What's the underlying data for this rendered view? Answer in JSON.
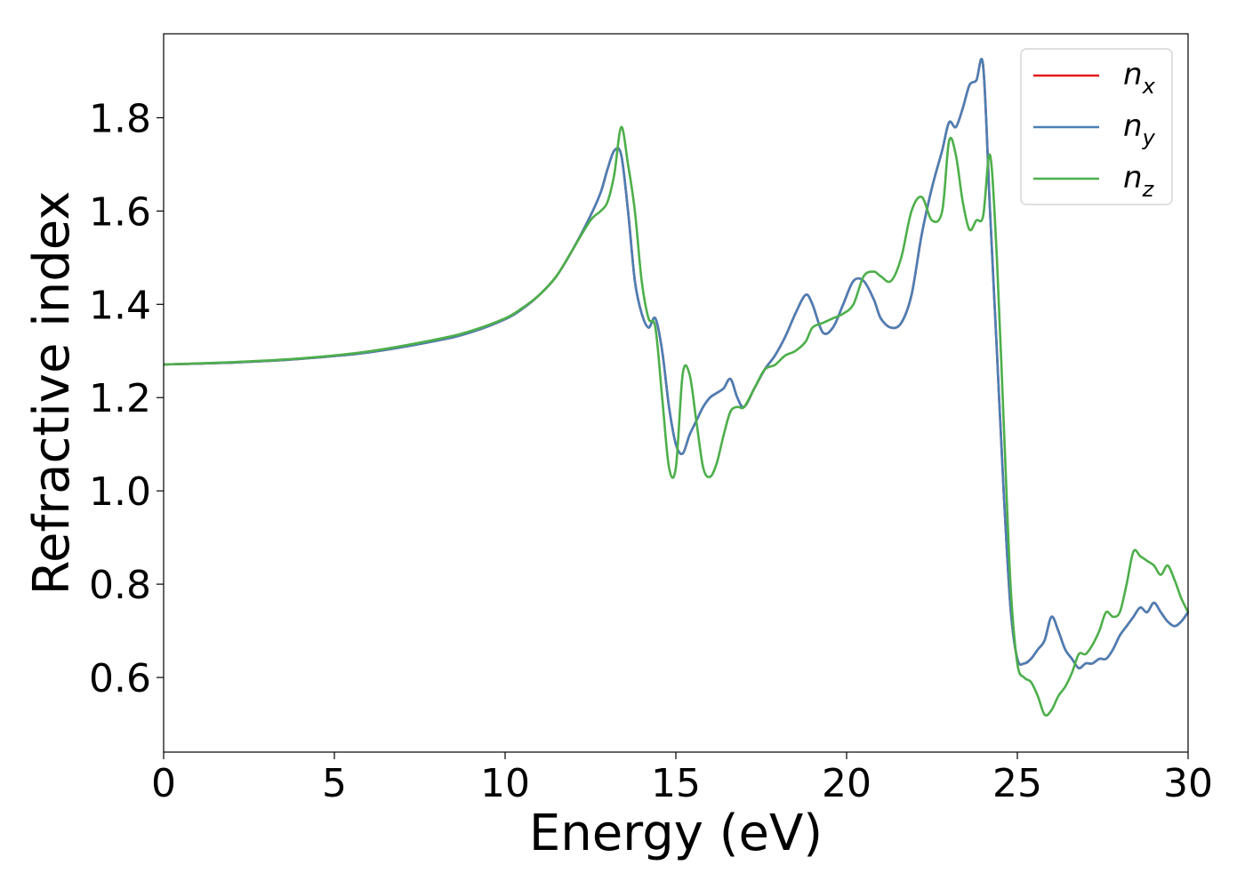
{
  "chart_data": {
    "type": "line",
    "xlabel": "Energy (eV)",
    "ylabel": "Refractive index",
    "xlim": [
      0,
      30
    ],
    "ylim": [
      0.44,
      1.98
    ],
    "xticks": [
      0,
      5,
      10,
      15,
      20,
      25,
      30
    ],
    "xtick_labels": [
      "0",
      "5",
      "10",
      "15",
      "20",
      "25",
      "30"
    ],
    "yticks": [
      0.6,
      0.8,
      1.0,
      1.2,
      1.4,
      1.6,
      1.8
    ],
    "ytick_labels": [
      "0.6",
      "0.8",
      "1.0",
      "1.2",
      "1.4",
      "1.6",
      "1.8"
    ],
    "grid": false,
    "legend_position": "top-right",
    "series": [
      {
        "name": "n_x",
        "legend_main": "n",
        "legend_sub": "x",
        "color": "#e41a1c",
        "x": [
          0,
          2,
          4,
          6,
          8,
          9,
          10,
          10.5,
          11,
          11.5,
          12,
          12.5,
          12.8,
          13.0,
          13.2,
          13.4,
          13.6,
          13.8,
          14.0,
          14.2,
          14.4,
          14.6,
          14.8,
          15.0,
          15.2,
          15.4,
          15.6,
          15.8,
          16.0,
          16.2,
          16.4,
          16.6,
          16.8,
          17.0,
          17.3,
          17.6,
          17.9,
          18.2,
          18.5,
          18.8,
          19.0,
          19.3,
          19.6,
          19.9,
          20.2,
          20.5,
          20.8,
          21.0,
          21.3,
          21.6,
          21.9,
          22.2,
          22.5,
          22.8,
          23.0,
          23.2,
          23.4,
          23.6,
          23.8,
          24.0,
          24.2,
          24.4,
          24.6,
          24.8,
          25.0,
          25.2,
          25.4,
          25.6,
          25.8,
          26.0,
          26.2,
          26.4,
          26.6,
          26.8,
          27.0,
          27.2,
          27.4,
          27.6,
          27.8,
          28.0,
          28.2,
          28.4,
          28.6,
          28.8,
          29.0,
          29.2,
          29.4,
          29.6,
          29.8,
          30.0
        ],
        "y": [
          1.271,
          1.275,
          1.283,
          1.297,
          1.322,
          1.34,
          1.368,
          1.39,
          1.42,
          1.46,
          1.52,
          1.59,
          1.64,
          1.69,
          1.73,
          1.72,
          1.6,
          1.45,
          1.38,
          1.35,
          1.37,
          1.3,
          1.18,
          1.1,
          1.08,
          1.12,
          1.15,
          1.18,
          1.2,
          1.21,
          1.22,
          1.24,
          1.2,
          1.18,
          1.22,
          1.26,
          1.29,
          1.33,
          1.38,
          1.42,
          1.4,
          1.34,
          1.35,
          1.4,
          1.45,
          1.45,
          1.41,
          1.37,
          1.35,
          1.36,
          1.42,
          1.55,
          1.65,
          1.73,
          1.79,
          1.78,
          1.82,
          1.87,
          1.88,
          1.91,
          1.6,
          1.3,
          1.0,
          0.75,
          0.64,
          0.63,
          0.64,
          0.66,
          0.68,
          0.73,
          0.7,
          0.66,
          0.64,
          0.62,
          0.63,
          0.63,
          0.64,
          0.64,
          0.66,
          0.69,
          0.71,
          0.73,
          0.75,
          0.74,
          0.76,
          0.74,
          0.72,
          0.71,
          0.72,
          0.74
        ]
      },
      {
        "name": "n_y",
        "legend_main": "n",
        "legend_sub": "y",
        "color": "#4a7fb5",
        "x": [
          0,
          2,
          4,
          6,
          8,
          9,
          10,
          10.5,
          11,
          11.5,
          12,
          12.5,
          12.8,
          13.0,
          13.2,
          13.4,
          13.6,
          13.8,
          14.0,
          14.2,
          14.4,
          14.6,
          14.8,
          15.0,
          15.2,
          15.4,
          15.6,
          15.8,
          16.0,
          16.2,
          16.4,
          16.6,
          16.8,
          17.0,
          17.3,
          17.6,
          17.9,
          18.2,
          18.5,
          18.8,
          19.0,
          19.3,
          19.6,
          19.9,
          20.2,
          20.5,
          20.8,
          21.0,
          21.3,
          21.6,
          21.9,
          22.2,
          22.5,
          22.8,
          23.0,
          23.2,
          23.4,
          23.6,
          23.8,
          24.0,
          24.2,
          24.4,
          24.6,
          24.8,
          25.0,
          25.2,
          25.4,
          25.6,
          25.8,
          26.0,
          26.2,
          26.4,
          26.6,
          26.8,
          27.0,
          27.2,
          27.4,
          27.6,
          27.8,
          28.0,
          28.2,
          28.4,
          28.6,
          28.8,
          29.0,
          29.2,
          29.4,
          29.6,
          29.8,
          30.0
        ],
        "y": [
          1.271,
          1.275,
          1.283,
          1.297,
          1.322,
          1.34,
          1.368,
          1.39,
          1.42,
          1.46,
          1.52,
          1.59,
          1.64,
          1.69,
          1.73,
          1.72,
          1.6,
          1.45,
          1.38,
          1.35,
          1.37,
          1.3,
          1.18,
          1.1,
          1.08,
          1.12,
          1.15,
          1.18,
          1.2,
          1.21,
          1.22,
          1.24,
          1.2,
          1.18,
          1.22,
          1.26,
          1.29,
          1.33,
          1.38,
          1.42,
          1.4,
          1.34,
          1.35,
          1.4,
          1.45,
          1.45,
          1.41,
          1.37,
          1.35,
          1.36,
          1.42,
          1.55,
          1.65,
          1.73,
          1.79,
          1.78,
          1.82,
          1.87,
          1.88,
          1.91,
          1.6,
          1.3,
          1.0,
          0.75,
          0.64,
          0.63,
          0.64,
          0.66,
          0.68,
          0.73,
          0.7,
          0.66,
          0.64,
          0.62,
          0.63,
          0.63,
          0.64,
          0.64,
          0.66,
          0.69,
          0.71,
          0.73,
          0.75,
          0.74,
          0.76,
          0.74,
          0.72,
          0.71,
          0.72,
          0.74
        ]
      },
      {
        "name": "n_z",
        "legend_main": "n",
        "legend_sub": "z",
        "color": "#4daf4a",
        "x": [
          0,
          2,
          4,
          6,
          8,
          9,
          10,
          10.5,
          11,
          11.5,
          12,
          12.5,
          12.8,
          13.0,
          13.2,
          13.4,
          13.6,
          13.8,
          14.0,
          14.2,
          14.4,
          14.6,
          14.8,
          15.0,
          15.2,
          15.4,
          15.6,
          15.8,
          16.0,
          16.2,
          16.4,
          16.6,
          16.8,
          17.0,
          17.3,
          17.6,
          17.9,
          18.2,
          18.5,
          18.8,
          19.0,
          19.3,
          19.6,
          19.9,
          20.2,
          20.5,
          20.8,
          21.0,
          21.3,
          21.6,
          21.9,
          22.2,
          22.5,
          22.8,
          23.0,
          23.2,
          23.4,
          23.6,
          23.8,
          24.0,
          24.2,
          24.4,
          24.6,
          24.8,
          25.0,
          25.2,
          25.4,
          25.6,
          25.8,
          26.0,
          26.2,
          26.4,
          26.6,
          26.8,
          27.0,
          27.2,
          27.4,
          27.6,
          27.8,
          28.0,
          28.2,
          28.4,
          28.6,
          28.8,
          29.0,
          29.2,
          29.4,
          29.6,
          29.8,
          30.0
        ],
        "y": [
          1.271,
          1.276,
          1.284,
          1.299,
          1.325,
          1.343,
          1.37,
          1.392,
          1.42,
          1.46,
          1.52,
          1.58,
          1.6,
          1.62,
          1.68,
          1.78,
          1.7,
          1.6,
          1.45,
          1.37,
          1.35,
          1.2,
          1.05,
          1.05,
          1.25,
          1.25,
          1.15,
          1.05,
          1.03,
          1.06,
          1.12,
          1.17,
          1.18,
          1.18,
          1.22,
          1.26,
          1.27,
          1.29,
          1.3,
          1.32,
          1.35,
          1.36,
          1.37,
          1.38,
          1.4,
          1.46,
          1.47,
          1.46,
          1.45,
          1.5,
          1.6,
          1.63,
          1.58,
          1.6,
          1.75,
          1.72,
          1.62,
          1.56,
          1.58,
          1.59,
          1.72,
          1.5,
          1.15,
          0.8,
          0.63,
          0.6,
          0.59,
          0.56,
          0.52,
          0.53,
          0.56,
          0.58,
          0.61,
          0.65,
          0.65,
          0.67,
          0.7,
          0.74,
          0.73,
          0.74,
          0.8,
          0.87,
          0.86,
          0.85,
          0.84,
          0.82,
          0.84,
          0.81,
          0.77,
          0.74
        ]
      }
    ]
  }
}
